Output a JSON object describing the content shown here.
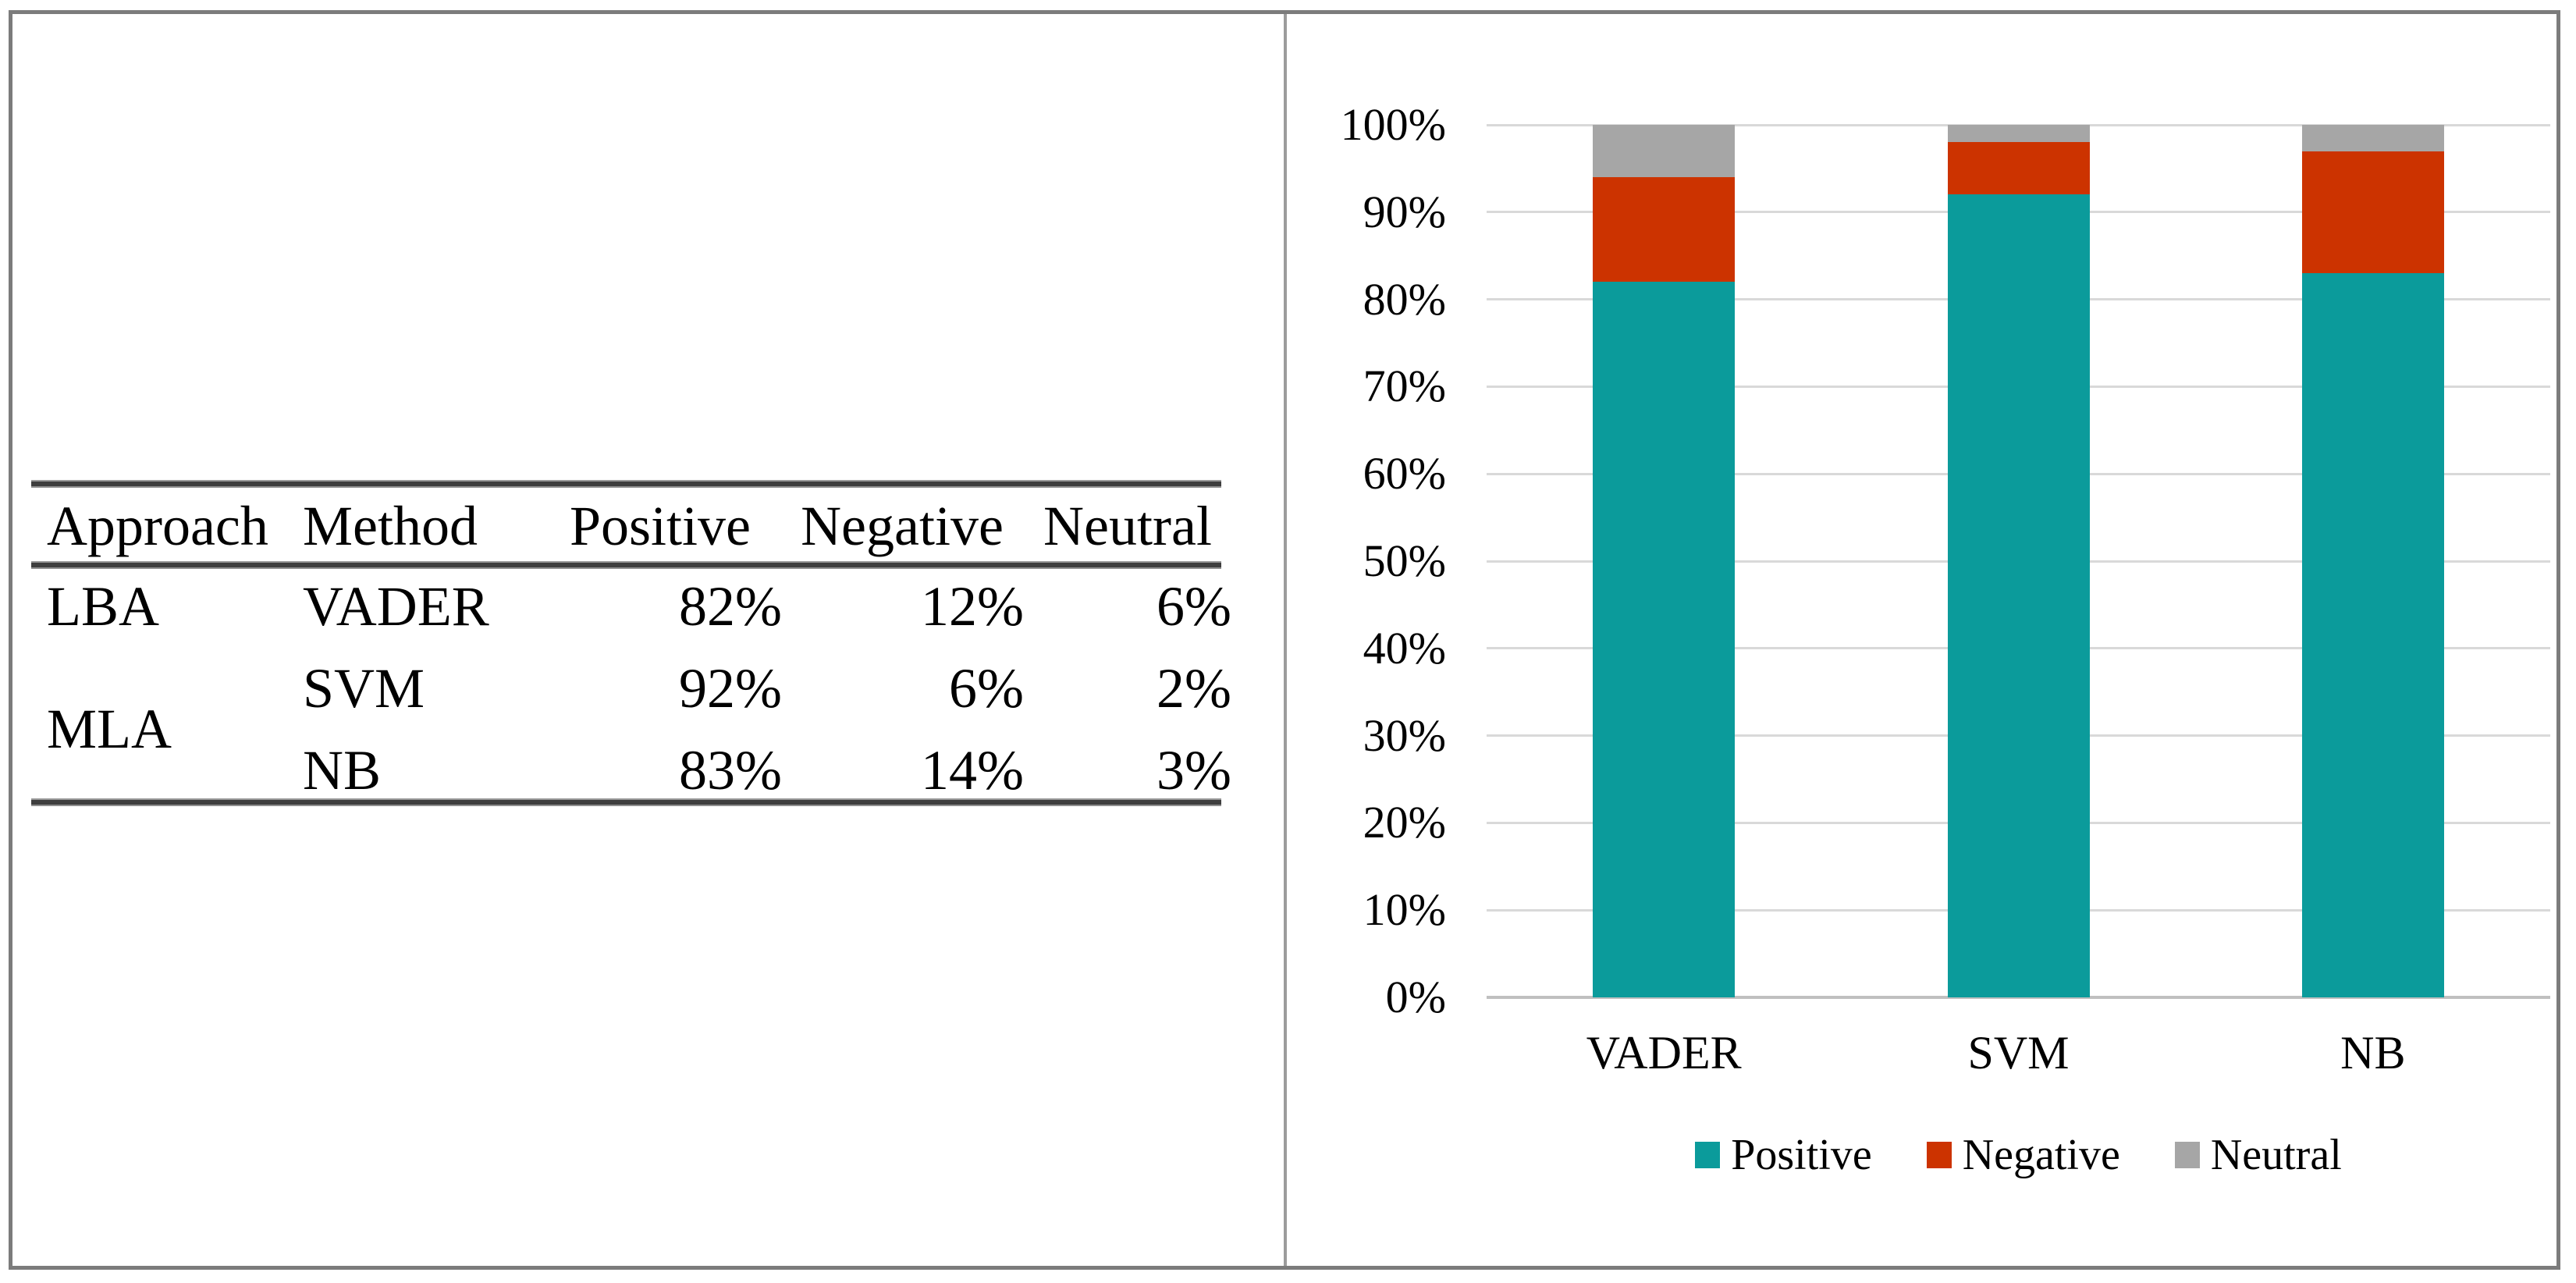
{
  "left_panel": {
    "table": {
      "headers": [
        "Approach",
        "Method",
        "Positive",
        "Negative",
        "Neutral"
      ],
      "approach_groups": [
        {
          "label": "LBA",
          "rows": [
            0
          ]
        },
        {
          "label": "MLA",
          "rows": [
            1,
            2
          ]
        }
      ],
      "rows": [
        {
          "method": "VADER",
          "positive": "82%",
          "negative": "12%",
          "neutral": "6%"
        },
        {
          "method": "SVM",
          "positive": "92%",
          "negative": "6%",
          "neutral": "2%"
        },
        {
          "method": "NB",
          "positive": "83%",
          "negative": "14%",
          "neutral": "3%"
        }
      ]
    }
  },
  "chart_data": {
    "type": "bar",
    "subtype": "stacked-100-percent",
    "title": "",
    "xlabel": "",
    "ylabel": "",
    "categories": [
      "VADER",
      "SVM",
      "NB"
    ],
    "series": [
      {
        "name": "Positive",
        "color": "#0b9b9b",
        "values": [
          82,
          92,
          83
        ]
      },
      {
        "name": "Negative",
        "color": "#cc3300",
        "values": [
          12,
          6,
          14
        ]
      },
      {
        "name": "Neutral",
        "color": "#a6a6a6",
        "values": [
          6,
          2,
          3
        ]
      }
    ],
    "yticks": [
      "0%",
      "10%",
      "20%",
      "30%",
      "40%",
      "50%",
      "60%",
      "70%",
      "80%",
      "90%",
      "100%"
    ],
    "ylim": [
      0,
      100
    ],
    "grid": true,
    "gridline_color": "#d9d9d9",
    "axis_line_color": "#c0c0c0",
    "legend_position": "bottom"
  }
}
